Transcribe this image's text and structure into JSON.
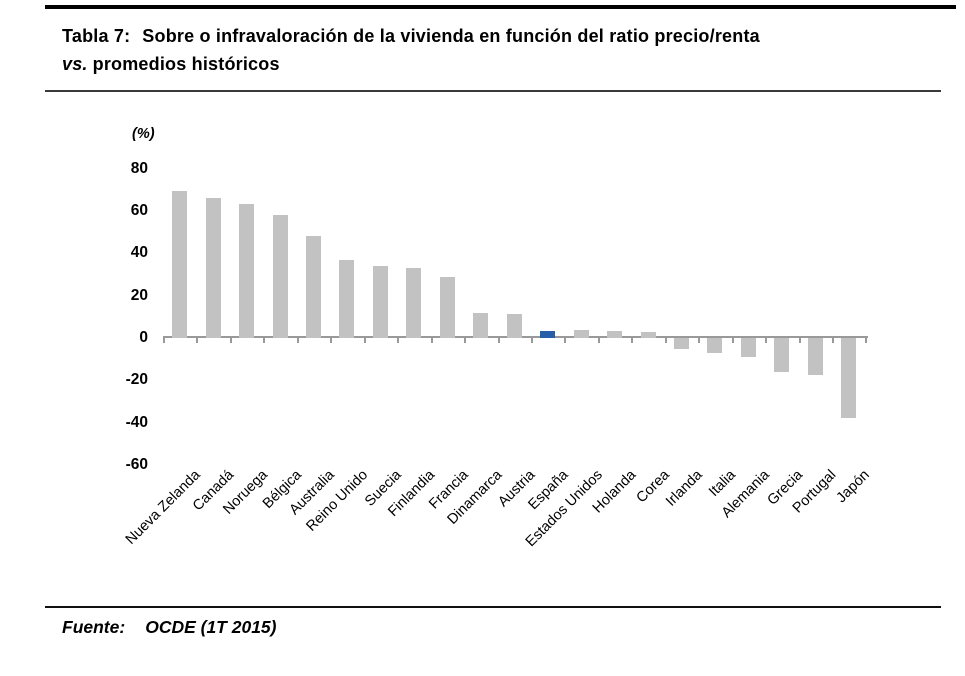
{
  "title": {
    "label": "Tabla 7:",
    "line1": "Sobre o infravaloración de la vivienda en función del ratio precio/renta",
    "line2_italic": "vs.",
    "line2": "promedios históricos"
  },
  "footer": {
    "source_label": "Fuente:",
    "source_value": "OCDE (1T 2015)"
  },
  "chart_data": {
    "type": "bar",
    "title": "Sobre o infravaloración de la vivienda en función del ratio precio/renta vs. promedios históricos",
    "unit_label": "(%)",
    "categories": [
      "Nueva Zelanda",
      "Canadá",
      "Noruega",
      "Bélgica",
      "Australia",
      "Reino Unido",
      "Suecia",
      "Finlandia",
      "Francia",
      "Dinamarca",
      "Austria",
      "España",
      "Estados Unidos",
      "Holanda",
      "Corea",
      "Irlanda",
      "Italia",
      "Alemania",
      "Grecia",
      "Portugal",
      "Japón"
    ],
    "values": [
      69.5,
      66,
      63.5,
      58,
      48,
      37,
      34,
      33,
      29,
      12,
      11.5,
      3.5,
      4,
      3.5,
      3,
      -5,
      -7,
      -9,
      -16,
      -17.5,
      -38
    ],
    "highlight_category": "España",
    "bar_color": "#c2c2c2",
    "highlight_color": "#265ea7",
    "axis_color": "#999999",
    "yticks": [
      80,
      60,
      40,
      20,
      0,
      -20,
      -40,
      -60
    ],
    "ylim": [
      -60,
      80
    ],
    "grid": false,
    "legend": null,
    "xlabel": "",
    "ylabel": "(%)"
  }
}
